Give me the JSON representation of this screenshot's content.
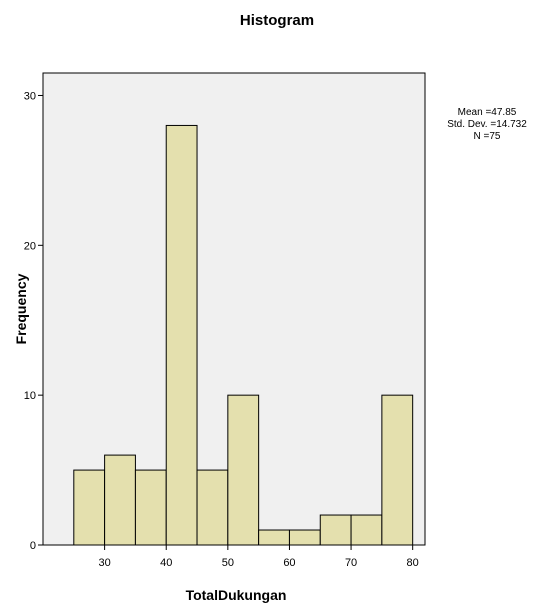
{
  "chart_data": {
    "type": "bar",
    "title": "Histogram",
    "xlabel": "TotalDukungan",
    "ylabel": "Frequency",
    "x_bin_edges": [
      25,
      30,
      35,
      40,
      45,
      50,
      55,
      60,
      65,
      70,
      75,
      80
    ],
    "values": [
      5,
      6,
      5,
      28,
      5,
      10,
      1,
      1,
      2,
      2,
      10
    ],
    "xlim": [
      20,
      82
    ],
    "ylim": [
      0,
      31.5
    ],
    "xticks": [
      30,
      40,
      50,
      60,
      70,
      80
    ],
    "yticks": [
      0,
      10,
      20,
      30
    ],
    "grid": false,
    "stats": {
      "mean": "Mean =47.85",
      "std": "Std. Dev. =14.732",
      "n": "N =75"
    }
  }
}
